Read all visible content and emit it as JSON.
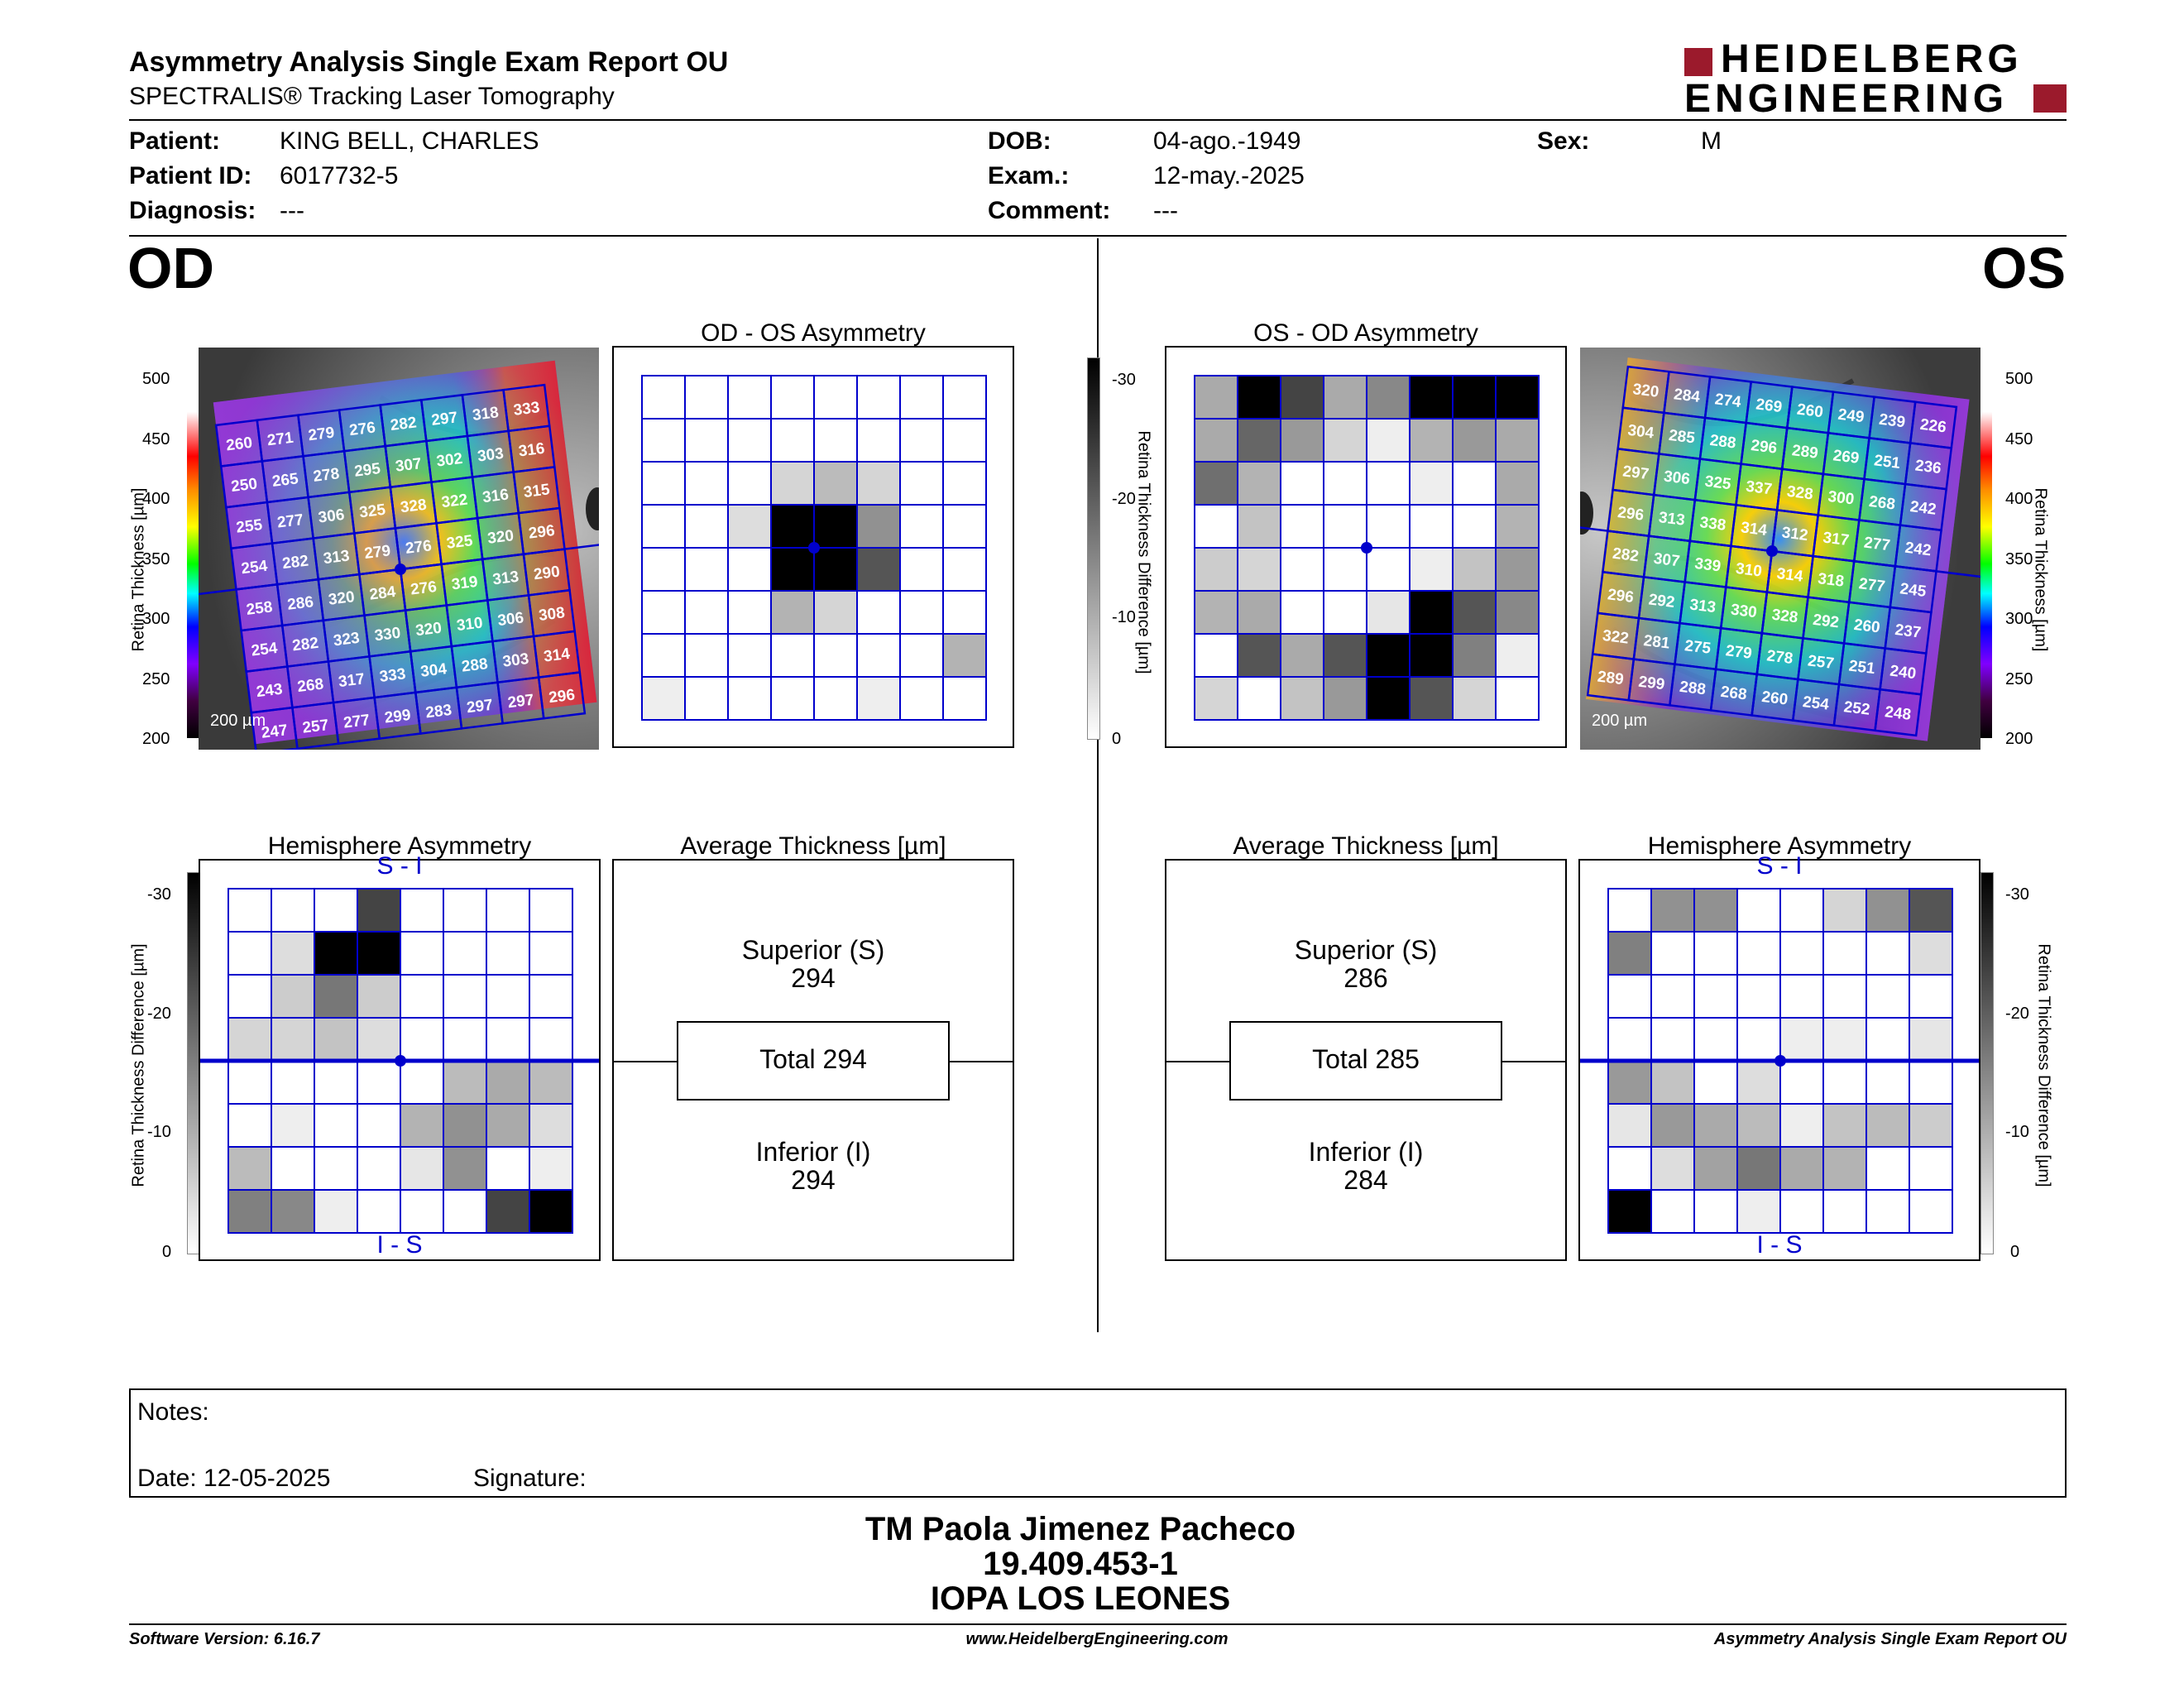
{
  "header": {
    "title": "Asymmetry Analysis Single Exam Report OU",
    "subtitle": "SPECTRALIS® Tracking Laser Tomography",
    "logo_line1": "HEIDELBERG",
    "logo_line2": "ENGINEERING"
  },
  "patient": {
    "patient_label": "Patient:",
    "patient_value": "KING BELL, CHARLES",
    "id_label": "Patient ID:",
    "id_value": "6017732-5",
    "diagnosis_label": "Diagnosis:",
    "diagnosis_value": "---",
    "dob_label": "DOB:",
    "dob_value": "04-ago.-1949",
    "exam_label": "Exam.:",
    "exam_value": "12-may.-2025",
    "comment_label": "Comment:",
    "comment_value": "---",
    "sex_label": "Sex:",
    "sex_value": "M"
  },
  "od": {
    "eye": "OD",
    "asym_title": "OD - OS Asymmetry",
    "hemi_title": "Hemisphere Asymmetry",
    "avg_title": "Average Thickness [µm]",
    "superior_label": "Superior (S)",
    "superior_value": "294",
    "total": "Total 294",
    "inferior_label": "Inferior (I)",
    "inferior_value": "294",
    "scale_label": "200 µm",
    "thickness": [
      [
        260,
        271,
        279,
        276,
        282,
        297,
        318,
        333
      ],
      [
        250,
        265,
        278,
        295,
        307,
        302,
        303,
        316
      ],
      [
        255,
        277,
        306,
        325,
        328,
        322,
        316,
        315
      ],
      [
        254,
        282,
        313,
        279,
        276,
        325,
        320,
        296
      ],
      [
        258,
        286,
        320,
        284,
        276,
        319,
        313,
        290
      ],
      [
        254,
        282,
        323,
        330,
        320,
        310,
        306,
        308
      ],
      [
        243,
        268,
        317,
        333,
        304,
        288,
        303,
        314
      ],
      [
        247,
        257,
        277,
        299,
        283,
        297,
        297,
        296
      ]
    ],
    "asym_grid": [
      [
        0,
        0,
        0,
        0,
        0,
        0,
        0,
        0
      ],
      [
        0,
        0,
        0,
        0,
        0,
        0,
        0,
        0
      ],
      [
        0,
        0,
        0,
        5,
        8,
        5,
        0,
        0
      ],
      [
        0,
        0,
        4,
        30,
        30,
        13,
        0,
        0
      ],
      [
        0,
        0,
        0,
        30,
        30,
        20,
        0,
        0
      ],
      [
        0,
        0,
        0,
        9,
        5,
        0,
        0,
        0
      ],
      [
        0,
        0,
        0,
        0,
        0,
        0,
        0,
        9
      ],
      [
        2,
        0,
        0,
        0,
        0,
        2,
        0,
        0
      ]
    ],
    "hemi_grid": [
      [
        0,
        0,
        0,
        22,
        0,
        0,
        0,
        0
      ],
      [
        0,
        4,
        30,
        30,
        0,
        0,
        0,
        0
      ],
      [
        0,
        6,
        16,
        6,
        0,
        0,
        0,
        0
      ],
      [
        5,
        5,
        7,
        4,
        0,
        0,
        0,
        0
      ],
      [
        0,
        0,
        0,
        0,
        0,
        8,
        10,
        8
      ],
      [
        0,
        2,
        0,
        0,
        9,
        13,
        10,
        4
      ],
      [
        8,
        0,
        0,
        0,
        3,
        13,
        0,
        2
      ],
      [
        15,
        14,
        2,
        0,
        0,
        0,
        22,
        30
      ]
    ]
  },
  "os": {
    "eye": "OS",
    "asym_title": "OS - OD Asymmetry",
    "hemi_title": "Hemisphere Asymmetry",
    "avg_title": "Average Thickness [µm]",
    "superior_label": "Superior (S)",
    "superior_value": "286",
    "total": "Total 285",
    "inferior_label": "Inferior (I)",
    "inferior_value": "284",
    "scale_label": "200 µm",
    "thickness": [
      [
        320,
        284,
        274,
        269,
        260,
        249,
        239,
        226
      ],
      [
        304,
        285,
        288,
        296,
        289,
        269,
        251,
        236
      ],
      [
        297,
        306,
        325,
        337,
        328,
        300,
        268,
        242
      ],
      [
        296,
        313,
        338,
        314,
        312,
        317,
        277,
        242
      ],
      [
        282,
        307,
        339,
        310,
        314,
        318,
        277,
        245
      ],
      [
        296,
        292,
        313,
        330,
        328,
        292,
        260,
        237
      ],
      [
        322,
        281,
        275,
        279,
        278,
        257,
        251,
        240
      ],
      [
        289,
        299,
        288,
        268,
        260,
        254,
        252,
        248
      ]
    ],
    "asym_grid": [
      [
        10,
        30,
        22,
        10,
        14,
        30,
        30,
        30
      ],
      [
        10,
        18,
        12,
        5,
        2,
        9,
        12,
        10
      ],
      [
        17,
        9,
        0,
        0,
        0,
        2,
        0,
        10
      ],
      [
        0,
        7,
        0,
        0,
        0,
        0,
        0,
        9
      ],
      [
        6,
        5,
        0,
        0,
        0,
        2,
        7,
        12
      ],
      [
        9,
        10,
        0,
        0,
        3,
        30,
        20,
        14
      ],
      [
        0,
        20,
        10,
        20,
        30,
        30,
        15,
        2
      ],
      [
        5,
        0,
        7,
        12,
        30,
        20,
        5,
        0
      ]
    ],
    "hemi_grid": [
      [
        0,
        13,
        13,
        0,
        0,
        5,
        13,
        20
      ],
      [
        15,
        0,
        0,
        0,
        0,
        0,
        0,
        4
      ],
      [
        0,
        0,
        0,
        0,
        0,
        0,
        0,
        0
      ],
      [
        0,
        0,
        0,
        0,
        2,
        2,
        0,
        3
      ],
      [
        12,
        7,
        0,
        4,
        0,
        0,
        0,
        0
      ],
      [
        3,
        12,
        10,
        8,
        2,
        7,
        8,
        6
      ],
      [
        0,
        4,
        11,
        16,
        10,
        9,
        0,
        0
      ],
      [
        30,
        0,
        0,
        2,
        0,
        0,
        0,
        0
      ]
    ]
  },
  "axes": {
    "thickness_label": "Retina Thickness [µm]",
    "thickness_ticks": [
      "500",
      "450",
      "400",
      "350",
      "300",
      "250",
      "200"
    ],
    "diff_label": "Retina Thickness Difference [µm]",
    "diff_ticks": [
      "-30",
      "-20",
      "-10",
      "0"
    ],
    "hemi_top": "S - I",
    "hemi_bottom": "I - S"
  },
  "notes": {
    "notes_label": "Notes:",
    "date_label": "Date: 12-05-2025",
    "signature_label": "Signature:"
  },
  "signature_block": {
    "line1": "TM Paola Jimenez Pacheco",
    "line2": "19.409.453-1",
    "line3": "IOPA LOS LEONES"
  },
  "footer": {
    "software": "Software Version: 6.16.7",
    "website": "www.HeidelbergEngineering.com",
    "report": "Asymmetry Analysis Single Exam Report OU"
  },
  "colors": {
    "grid_blue": "#0000cc",
    "logo_red": "#9b1a2c"
  }
}
